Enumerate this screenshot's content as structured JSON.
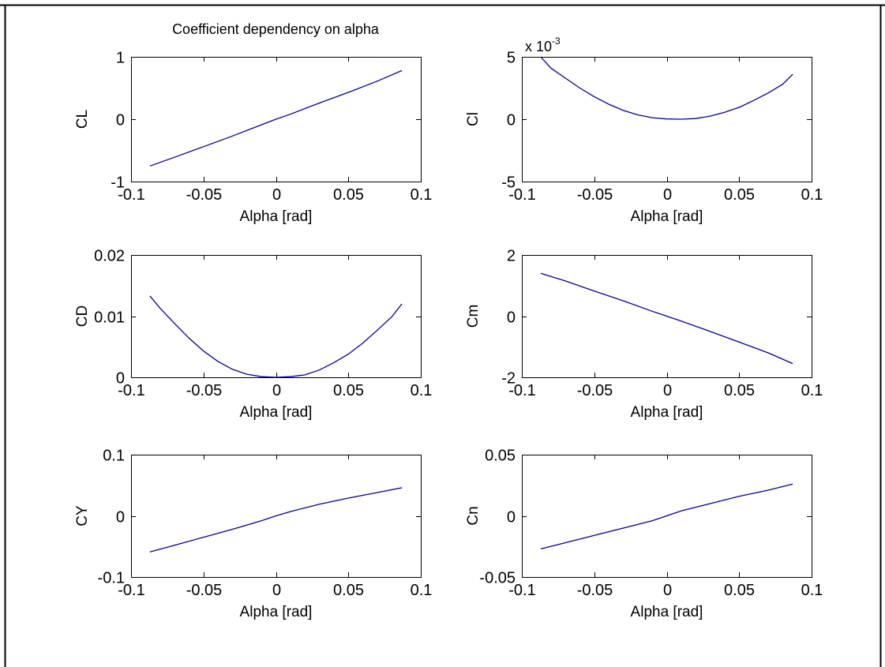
{
  "figure": {
    "background": "#ffffff",
    "frame_color": "#000000",
    "line_color": "#0000a0",
    "axes_color": "#000000"
  },
  "chart_data": [
    {
      "type": "line",
      "title": "Coefficient dependency on alpha",
      "xlabel": "Alpha [rad]",
      "ylabel": "CL",
      "xlim": [
        -0.1,
        0.1
      ],
      "ylim": [
        -1,
        1
      ],
      "xticks": [
        -0.1,
        -0.05,
        0,
        0.05,
        0.1
      ],
      "xtick_labels": [
        "-0.1",
        "-0.05",
        "0",
        "0.05",
        "0.1"
      ],
      "yticks": [
        -1,
        0,
        1
      ],
      "ytick_labels": [
        "-1",
        "0",
        "1"
      ],
      "exponent_label": "",
      "grid": false,
      "series": [
        {
          "x": [
            -0.087,
            -0.07,
            -0.05,
            -0.03,
            -0.01,
            0,
            0.01,
            0.03,
            0.05,
            0.07,
            0.087
          ],
          "y": [
            -0.75,
            -0.61,
            -0.44,
            -0.27,
            -0.09,
            0.0,
            0.08,
            0.26,
            0.43,
            0.61,
            0.78
          ]
        }
      ]
    },
    {
      "type": "line",
      "title": "",
      "xlabel": "Alpha [rad]",
      "ylabel": "Cl",
      "xlim": [
        -0.1,
        0.1
      ],
      "ylim": [
        -5,
        5
      ],
      "xticks": [
        -0.1,
        -0.05,
        0,
        0.05,
        0.1
      ],
      "xtick_labels": [
        "-0.1",
        "-0.05",
        "0",
        "0.05",
        "0.1"
      ],
      "yticks": [
        -5,
        0,
        5
      ],
      "ytick_labels": [
        "-5",
        "0",
        "5"
      ],
      "exponent_label": "x 10",
      "exponent_power": "-3",
      "grid": false,
      "series": [
        {
          "x": [
            -0.087,
            -0.08,
            -0.07,
            -0.06,
            -0.05,
            -0.04,
            -0.03,
            -0.02,
            -0.01,
            0,
            0.01,
            0.02,
            0.03,
            0.04,
            0.05,
            0.06,
            0.07,
            0.08,
            0.087
          ],
          "y": [
            5.0,
            4.1,
            3.3,
            2.5,
            1.8,
            1.2,
            0.7,
            0.35,
            0.12,
            0.02,
            0.0,
            0.05,
            0.25,
            0.55,
            0.95,
            1.5,
            2.1,
            2.8,
            3.6
          ]
        }
      ]
    },
    {
      "type": "line",
      "title": "",
      "xlabel": "Alpha [rad]",
      "ylabel": "CD",
      "xlim": [
        -0.1,
        0.1
      ],
      "ylim": [
        0,
        0.02
      ],
      "xticks": [
        -0.1,
        -0.05,
        0,
        0.05,
        0.1
      ],
      "xtick_labels": [
        "-0.1",
        "-0.05",
        "0",
        "0.05",
        "0.1"
      ],
      "yticks": [
        0,
        0.01,
        0.02
      ],
      "ytick_labels": [
        "0",
        "0.01",
        "0.02"
      ],
      "exponent_label": "",
      "grid": false,
      "series": [
        {
          "x": [
            -0.087,
            -0.08,
            -0.07,
            -0.06,
            -0.05,
            -0.04,
            -0.03,
            -0.02,
            -0.01,
            0,
            0.01,
            0.02,
            0.03,
            0.04,
            0.05,
            0.06,
            0.07,
            0.08,
            0.087
          ],
          "y": [
            0.0133,
            0.0113,
            0.0088,
            0.0064,
            0.0043,
            0.0026,
            0.0013,
            0.0005,
            0.0001,
            0.0,
            0.0001,
            0.0004,
            0.0012,
            0.0024,
            0.0038,
            0.0056,
            0.0077,
            0.0099,
            0.012
          ]
        }
      ]
    },
    {
      "type": "line",
      "title": "",
      "xlabel": "Alpha [rad]",
      "ylabel": "Cm",
      "xlim": [
        -0.1,
        0.1
      ],
      "ylim": [
        -2,
        2
      ],
      "xticks": [
        -0.1,
        -0.05,
        0,
        0.05,
        0.1
      ],
      "xtick_labels": [
        "-0.1",
        "-0.05",
        "0",
        "0.05",
        "0.1"
      ],
      "yticks": [
        -2,
        0,
        2
      ],
      "ytick_labels": [
        "-2",
        "0",
        "2"
      ],
      "exponent_label": "",
      "grid": false,
      "series": [
        {
          "x": [
            -0.087,
            -0.07,
            -0.05,
            -0.03,
            -0.01,
            0,
            0.01,
            0.03,
            0.05,
            0.07,
            0.087
          ],
          "y": [
            1.4,
            1.15,
            0.82,
            0.5,
            0.16,
            0.0,
            -0.16,
            -0.5,
            -0.85,
            -1.2,
            -1.55
          ]
        }
      ]
    },
    {
      "type": "line",
      "title": "",
      "xlabel": "Alpha [rad]",
      "ylabel": "CY",
      "xlim": [
        -0.1,
        0.1
      ],
      "ylim": [
        -0.1,
        0.1
      ],
      "xticks": [
        -0.1,
        -0.05,
        0,
        0.05,
        0.1
      ],
      "xtick_labels": [
        "-0.1",
        "-0.05",
        "0",
        "0.05",
        "0.1"
      ],
      "yticks": [
        -0.1,
        0,
        0.1
      ],
      "ytick_labels": [
        "-0.1",
        "0",
        "0.1"
      ],
      "exponent_label": "",
      "grid": false,
      "series": [
        {
          "x": [
            -0.087,
            -0.07,
            -0.05,
            -0.03,
            -0.01,
            0,
            0.01,
            0.03,
            0.05,
            0.07,
            0.087
          ],
          "y": [
            -0.059,
            -0.048,
            -0.035,
            -0.022,
            -0.008,
            0.0,
            0.007,
            0.019,
            0.029,
            0.038,
            0.046
          ]
        }
      ]
    },
    {
      "type": "line",
      "title": "",
      "xlabel": "Alpha [rad]",
      "ylabel": "Cn",
      "xlim": [
        -0.1,
        0.1
      ],
      "ylim": [
        -0.05,
        0.05
      ],
      "xticks": [
        -0.1,
        -0.05,
        0,
        0.05,
        0.1
      ],
      "xtick_labels": [
        "-0.1",
        "-0.05",
        "0",
        "0.05",
        "0.1"
      ],
      "yticks": [
        -0.05,
        0,
        0.05
      ],
      "ytick_labels": [
        "-0.05",
        "0",
        "0.05"
      ],
      "exponent_label": "",
      "grid": false,
      "series": [
        {
          "x": [
            -0.087,
            -0.07,
            -0.05,
            -0.03,
            -0.01,
            0,
            0.01,
            0.03,
            0.05,
            0.07,
            0.087
          ],
          "y": [
            -0.027,
            -0.022,
            -0.016,
            -0.01,
            -0.004,
            0.0,
            0.004,
            0.01,
            0.016,
            0.021,
            0.026
          ]
        }
      ]
    }
  ]
}
